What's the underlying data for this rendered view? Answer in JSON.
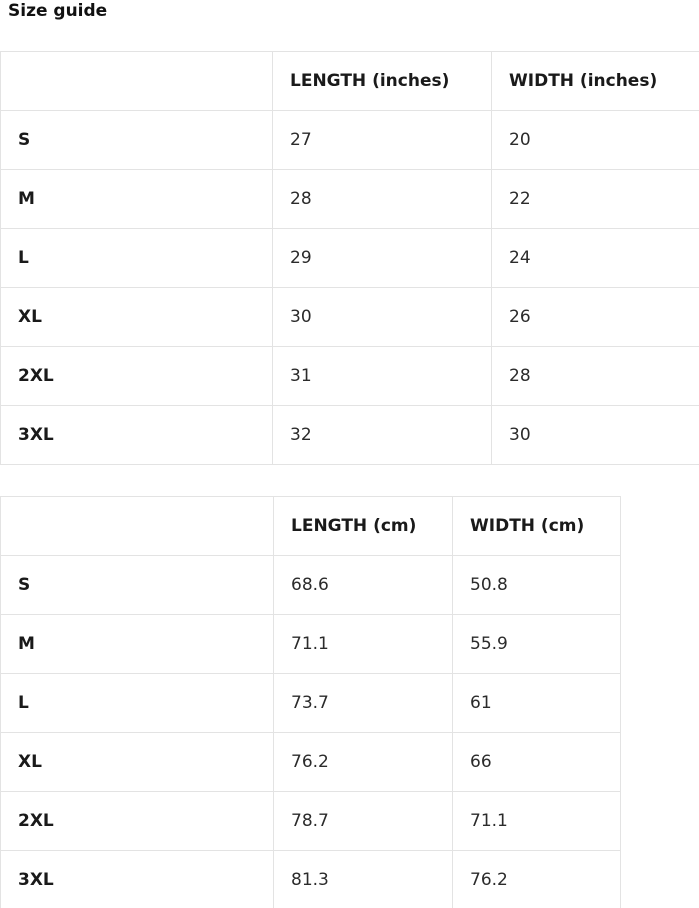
{
  "page": {
    "title": "Size guide"
  },
  "colors": {
    "background": "#ffffff",
    "border": "#e3e3e3",
    "text": "#212121"
  },
  "tables": [
    {
      "name": "inches",
      "columns": [
        "",
        "LENGTH (inches)",
        "WIDTH (inches)"
      ],
      "rows": [
        {
          "size": "S",
          "length": "27",
          "width": "20"
        },
        {
          "size": "M",
          "length": "28",
          "width": "22"
        },
        {
          "size": "L",
          "length": "29",
          "width": "24"
        },
        {
          "size": "XL",
          "length": "30",
          "width": "26"
        },
        {
          "size": "2XL",
          "length": "31",
          "width": "28"
        },
        {
          "size": "3XL",
          "length": "32",
          "width": "30"
        }
      ]
    },
    {
      "name": "cm",
      "columns": [
        "",
        "LENGTH (cm)",
        "WIDTH (cm)"
      ],
      "rows": [
        {
          "size": "S",
          "length": "68.6",
          "width": "50.8"
        },
        {
          "size": "M",
          "length": "71.1",
          "width": "55.9"
        },
        {
          "size": "L",
          "length": "73.7",
          "width": "61"
        },
        {
          "size": "XL",
          "length": "76.2",
          "width": "66"
        },
        {
          "size": "2XL",
          "length": "78.7",
          "width": "71.1"
        },
        {
          "size": "3XL",
          "length": "81.3",
          "width": "76.2"
        }
      ]
    }
  ]
}
